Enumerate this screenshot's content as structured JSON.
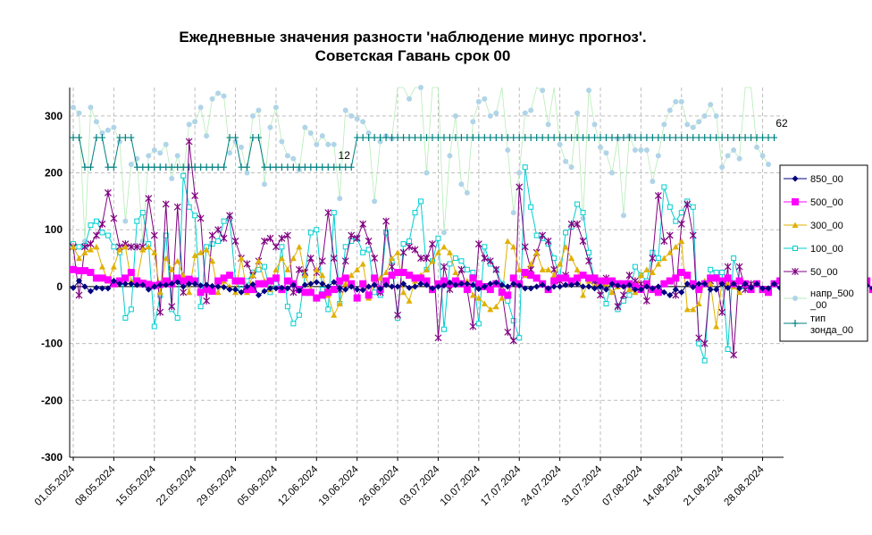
{
  "chart_data": {
    "type": "line",
    "title": [
      "Ежедневные значения разности 'наблюдение минус прогноз'.",
      "Советская Гавань     срок 00"
    ],
    "xlabel": "",
    "ylabel": "",
    "ylim": [
      -300,
      350
    ],
    "yticks": [
      300,
      200,
      100,
      0,
      -100,
      -200,
      -300
    ],
    "grid": true,
    "legend_position": "right",
    "x_tick_labels": [
      "01.05.2024",
      "08.05.2024",
      "15.05.2024",
      "22.05.2024",
      "29.05.2024",
      "05.06.2024",
      "12.06.2024",
      "19.06.2024",
      "26.06.2024",
      "03.07.2024",
      "10.07.2024",
      "17.07.2024",
      "24.07.2024",
      "31.07.2024",
      "07.08.2024",
      "14.08.2024",
      "21.08.2024",
      "28.08.2024"
    ],
    "start_date": "2024-05-01",
    "annotations": [
      "12",
      "62"
    ],
    "series": [
      {
        "name": "850_00",
        "color": "#000080",
        "marker": "diamond",
        "values": [
          -2,
          10,
          0,
          -8,
          -2,
          -3,
          -3,
          10,
          5,
          5,
          5,
          3,
          3,
          -5,
          0,
          3,
          3,
          5,
          8,
          0,
          5,
          5,
          2,
          3,
          1,
          0,
          -1,
          -5,
          -5,
          -10,
          0,
          4,
          -15,
          -8,
          -3,
          -3,
          -2,
          -3,
          3,
          -7,
          3,
          5,
          8,
          5,
          0,
          8,
          -3,
          -5,
          0,
          -5,
          -6,
          0,
          3,
          -4,
          3,
          0,
          0,
          5,
          -2,
          0,
          5,
          3,
          -3,
          0,
          2,
          7,
          3,
          5,
          5,
          3,
          -4,
          0,
          5,
          7,
          3,
          0,
          5,
          2,
          -3,
          -3,
          0,
          3,
          -3,
          0,
          0,
          3,
          3,
          5,
          0,
          0,
          -3,
          0,
          -5,
          5,
          2,
          0,
          3,
          -5,
          -5,
          0,
          -3,
          0,
          -10,
          -15,
          -5,
          -10,
          5,
          -1,
          5,
          5,
          -5,
          -5,
          5,
          -2,
          5,
          -3,
          5,
          -2,
          5,
          -3,
          -3,
          5,
          -2,
          -5,
          0,
          -1,
          0,
          0,
          -3,
          0,
          0,
          -4,
          -3,
          8,
          -5,
          5,
          -3,
          2,
          -3,
          3,
          5,
          -2,
          5,
          -3,
          3,
          -4
        ]
      },
      {
        "name": "500_00",
        "color": "#ff00ff",
        "marker": "square",
        "values": [
          30,
          28,
          28,
          25,
          15,
          15,
          12,
          5,
          10,
          15,
          25,
          10,
          6,
          4,
          2,
          4,
          10,
          5,
          15,
          10,
          13,
          10,
          -10,
          -5,
          -8,
          10,
          15,
          20,
          10,
          10,
          -5,
          -5,
          5,
          5,
          10,
          15,
          -5,
          10,
          5,
          -5,
          -10,
          -10,
          -20,
          -15,
          -10,
          -5,
          10,
          15,
          5,
          -20,
          5,
          -15,
          15,
          -5,
          10,
          20,
          25,
          25,
          20,
          15,
          15,
          10,
          -5,
          5,
          10,
          5,
          10,
          5,
          -5,
          15,
          5,
          0,
          -5,
          5,
          -10,
          -15,
          15,
          5,
          25,
          20,
          15,
          5,
          -5,
          10,
          15,
          15,
          10,
          15,
          20,
          15,
          15,
          10,
          10,
          10,
          5,
          5,
          5,
          0,
          -5,
          5,
          -5,
          -10,
          5,
          10,
          15,
          25,
          20,
          5,
          -5,
          5,
          15,
          15,
          10,
          15,
          5,
          10,
          5,
          -5,
          5,
          -5,
          -10,
          5,
          10,
          5,
          0,
          -5,
          -10,
          5,
          10,
          5,
          5,
          -15,
          5,
          -5,
          5,
          -10,
          5,
          10,
          -5,
          10
        ]
      },
      {
        "name": "300_00",
        "color": "#e0b000",
        "marker": "triangle",
        "values": [
          70,
          50,
          60,
          65,
          70,
          35,
          10,
          35,
          65,
          70,
          10,
          10,
          65,
          70,
          60,
          -10,
          50,
          30,
          45,
          20,
          -10,
          55,
          60,
          65,
          45,
          -10,
          10,
          0,
          -10,
          50,
          -10,
          20,
          45,
          10,
          -5,
          30,
          50,
          30,
          50,
          70,
          20,
          -5,
          30,
          20,
          -15,
          -50,
          -30,
          5,
          20,
          30,
          40,
          -20,
          5,
          15,
          25,
          50,
          60,
          -10,
          -25,
          10,
          20,
          30,
          45,
          60,
          70,
          60,
          25,
          5,
          10,
          -15,
          -20,
          -30,
          -40,
          -35,
          -20,
          80,
          70,
          30,
          20,
          40,
          60,
          30,
          30,
          20,
          40,
          70,
          50,
          30,
          -15,
          10,
          0,
          5,
          5,
          -10,
          0,
          5,
          -5,
          -10,
          20,
          30,
          25,
          40,
          50,
          60,
          70,
          80,
          -40,
          -40,
          -30,
          10,
          5,
          -70,
          10,
          5,
          0,
          -10
        ]
      },
      {
        "name": "100_00",
        "color": "#00ced1",
        "marker": "square-open",
        "values": [
          75,
          70,
          72,
          108,
          115,
          95,
          90,
          70,
          60,
          -55,
          -40,
          115,
          130,
          75,
          -70,
          -15,
          90,
          -40,
          -55,
          195,
          140,
          125,
          -35,
          70,
          75,
          80,
          115,
          120,
          10,
          -5,
          10,
          25,
          30,
          35,
          -10,
          5,
          70,
          -35,
          -65,
          -50,
          20,
          95,
          100,
          -5,
          -40,
          130,
          -30,
          70,
          80,
          85,
          60,
          65,
          -10,
          -15,
          95,
          45,
          -55,
          75,
          80,
          130,
          150,
          30,
          45,
          85,
          -75,
          40,
          50,
          45,
          30,
          25,
          -65,
          70,
          40,
          30,
          5,
          -25,
          -60,
          -90,
          210,
          140,
          90,
          85,
          75,
          50,
          15,
          95,
          105,
          145,
          130,
          60,
          10,
          0,
          -30,
          10,
          -40,
          -25,
          -15,
          35,
          20,
          10,
          60,
          50,
          175,
          140,
          115,
          130,
          150,
          140,
          -100,
          -130,
          30,
          25,
          25,
          -110,
          50,
          10,
          0
        ]
      },
      {
        "name": "50_00",
        "color": "#800080",
        "marker": "star",
        "values": [
          70,
          -15,
          70,
          75,
          90,
          110,
          165,
          120,
          70,
          75,
          70,
          70,
          70,
          155,
          90,
          -45,
          145,
          -35,
          140,
          -10,
          255,
          160,
          120,
          -25,
          90,
          100,
          85,
          125,
          80,
          50,
          40,
          20,
          45,
          80,
          85,
          70,
          85,
          90,
          -10,
          30,
          25,
          50,
          25,
          45,
          130,
          50,
          -5,
          45,
          90,
          85,
          110,
          80,
          50,
          -10,
          115,
          35,
          -50,
          60,
          70,
          65,
          50,
          50,
          75,
          -90,
          35,
          -5,
          10,
          30,
          -5,
          -70,
          75,
          50,
          45,
          30,
          -10,
          -80,
          -95,
          175,
          70,
          30,
          60,
          90,
          80,
          30,
          10,
          20,
          110,
          110,
          80,
          45,
          10,
          -15,
          15,
          5,
          -35,
          -15,
          20,
          10,
          5,
          -25,
          50,
          160,
          80,
          90,
          -15,
          110,
          145,
          90,
          -90,
          -100,
          10,
          15,
          -45,
          35,
          -120,
          35,
          -5,
          5
        ]
      },
      {
        "name": "напр_500\n_00",
        "color": "#b0d4e8",
        "line": "#b6ecb6",
        "marker": "circle",
        "values": [
          315,
          305,
          80,
          315,
          290,
          270,
          275,
          280,
          255,
          115,
          215,
          225,
          80,
          230,
          240,
          235,
          250,
          190,
          230,
          195,
          285,
          290,
          315,
          265,
          330,
          340,
          335,
          235,
          255,
          245,
          200,
          300,
          310,
          180,
          280,
          315,
          255,
          230,
          225,
          205,
          280,
          270,
          250,
          265,
          250,
          250,
          155,
          310,
          300,
          295,
          290,
          270,
          150,
          255,
          265,
          260,
          390,
          385,
          330,
          385,
          350,
          200,
          395,
          390,
          95,
          230,
          300,
          180,
          165,
          290,
          325,
          330,
          300,
          305,
          400,
          240,
          130,
          200,
          305,
          310,
          355,
          345,
          285,
          370,
          250,
          220,
          210,
          305,
          120,
          345,
          285,
          245,
          235,
          200,
          260,
          125,
          265,
          240,
          240,
          240,
          185,
          230,
          285,
          310,
          325,
          325,
          285,
          280,
          290,
          300,
          320,
          300,
          210,
          230,
          240,
          225,
          355,
          355,
          245,
          230,
          215
        ]
      },
      {
        "name": "тип\nзонда_00",
        "color": "#008080",
        "marker": "plus",
        "values": [
          262,
          262,
          210,
          210,
          262,
          262,
          210,
          210,
          262,
          262,
          262,
          210,
          210,
          210,
          210,
          210,
          210,
          210,
          210,
          210,
          210,
          210,
          210,
          210,
          210,
          210,
          210,
          262,
          262,
          210,
          210,
          262,
          262,
          210,
          210,
          210,
          210,
          210,
          210,
          210,
          210,
          210,
          210,
          210,
          210,
          210,
          210,
          210,
          210,
          262,
          262,
          262,
          262,
          262,
          262,
          262,
          262,
          262,
          262,
          262,
          262,
          262,
          262,
          262,
          262,
          262,
          262,
          262,
          262,
          262,
          262,
          262,
          262,
          262,
          262,
          262,
          262,
          262,
          262,
          262,
          262,
          262,
          262,
          262,
          262,
          262,
          262,
          262,
          262,
          262,
          262,
          262,
          262,
          262,
          262,
          262,
          262,
          262,
          262,
          262,
          262,
          262,
          262,
          262,
          262,
          262,
          262,
          262,
          262,
          262,
          262,
          262,
          262,
          262,
          262,
          262,
          262,
          262,
          262,
          262,
          262,
          262
        ]
      }
    ]
  }
}
